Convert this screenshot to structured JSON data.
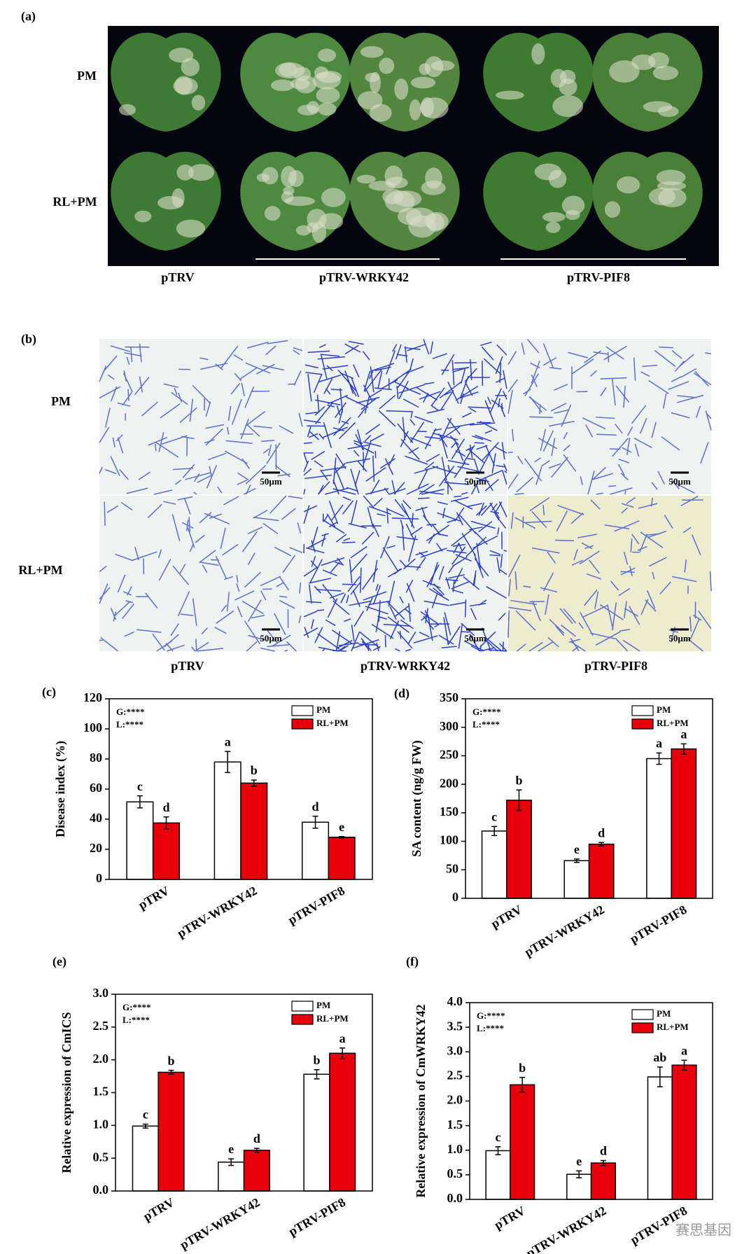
{
  "panel_a": {
    "label": "(a)",
    "rows": [
      "PM",
      "RL+PM"
    ],
    "columns": [
      "pTRV",
      "pTRV-WRKY42",
      "pTRV-PIF8"
    ]
  },
  "panel_b": {
    "label": "(b)",
    "rows": [
      "PM",
      "RL+PM"
    ],
    "columns": [
      "pTRV",
      "pTRV-WRKY42",
      "pTRV-PIF8"
    ],
    "scale_bar": "50µm"
  },
  "chart_data": [
    {
      "type": "bar",
      "panel_label": "(c)",
      "y_label": "Disease index (%)",
      "stats": [
        "G:****",
        "L:****"
      ],
      "categories": [
        "pTRV",
        "pTRV-WRKY42",
        "pTRV-PIF8"
      ],
      "series": [
        {
          "name": "PM",
          "color": "#ffffff",
          "values": [
            51.5,
            78,
            38
          ],
          "errors": [
            4,
            7,
            4
          ],
          "labels": [
            "c",
            "a",
            "d"
          ]
        },
        {
          "name": "RL+PM",
          "color": "#e8000b",
          "values": [
            37.5,
            64,
            28
          ],
          "errors": [
            4,
            2,
            0.5
          ],
          "labels": [
            "d",
            "b",
            "e"
          ]
        }
      ],
      "ylim": [
        0,
        120
      ],
      "yticks": [
        0,
        20,
        40,
        60,
        80,
        100,
        120
      ]
    },
    {
      "type": "bar",
      "panel_label": "(d)",
      "y_label": "SA content (ng/g FW)",
      "stats": [
        "G:****",
        "L:****"
      ],
      "categories": [
        "pTRV",
        "pTRV-WRKY42",
        "pTRV-PIF8"
      ],
      "series": [
        {
          "name": "PM",
          "color": "#ffffff",
          "values": [
            118,
            66,
            245
          ],
          "errors": [
            8,
            3,
            10
          ],
          "labels": [
            "c",
            "e",
            "a"
          ]
        },
        {
          "name": "RL+PM",
          "color": "#e8000b",
          "values": [
            172,
            95,
            262
          ],
          "errors": [
            18,
            3,
            9
          ],
          "labels": [
            "b",
            "d",
            "a"
          ]
        }
      ],
      "ylim": [
        0,
        350
      ],
      "yticks": [
        0,
        50,
        100,
        150,
        200,
        250,
        300,
        350
      ]
    },
    {
      "type": "bar",
      "panel_label": "(e)",
      "y_label": "Relative expression of CmICS",
      "stats": [
        "G:****",
        "L:****"
      ],
      "categories": [
        "pTRV",
        "pTRV-WRKY42",
        "pTRV-PIF8"
      ],
      "series": [
        {
          "name": "PM",
          "color": "#ffffff",
          "values": [
            0.99,
            0.44,
            1.78
          ],
          "errors": [
            0.03,
            0.05,
            0.07
          ],
          "labels": [
            "c",
            "e",
            "b"
          ]
        },
        {
          "name": "RL+PM",
          "color": "#e8000b",
          "values": [
            1.81,
            0.62,
            2.1
          ],
          "errors": [
            0.03,
            0.03,
            0.08
          ],
          "labels": [
            "b",
            "d",
            "a"
          ]
        }
      ],
      "ylim": [
        0,
        3
      ],
      "yticks": [
        {
          "value": 0,
          "label": "0.0"
        },
        0.5,
        {
          "value": 1,
          "label": "1.0"
        },
        1.5,
        {
          "value": 2,
          "label": "2.0"
        },
        2.5,
        {
          "value": 3,
          "label": "3.0"
        }
      ]
    },
    {
      "type": "bar",
      "panel_label": "(f)",
      "y_label": "Relative expression of CmWRKY42",
      "stats": [
        "G:****",
        "L:****"
      ],
      "categories": [
        "pTRV",
        "pTRV-WRKY42",
        "pTRV-PIF8"
      ],
      "series": [
        {
          "name": "PM",
          "color": "#ffffff",
          "values": [
            0.99,
            0.51,
            2.49
          ],
          "errors": [
            0.08,
            0.07,
            0.2
          ],
          "labels": [
            "c",
            "e",
            "ab"
          ]
        },
        {
          "name": "RL+PM",
          "color": "#e8000b",
          "values": [
            2.33,
            0.74,
            2.73
          ],
          "errors": [
            0.15,
            0.05,
            0.1
          ],
          "labels": [
            "b",
            "d",
            "a"
          ]
        }
      ],
      "ylim": [
        0,
        4
      ],
      "yticks": [
        {
          "value": 0,
          "label": "0.0"
        },
        0.5,
        {
          "value": 1,
          "label": "1.0"
        },
        1.5,
        {
          "value": 2,
          "label": "2.0"
        },
        2.5,
        {
          "value": 3,
          "label": "3.0"
        },
        3.5,
        {
          "value": 4,
          "label": "4.0"
        }
      ]
    }
  ],
  "watermark": "赛思基因"
}
